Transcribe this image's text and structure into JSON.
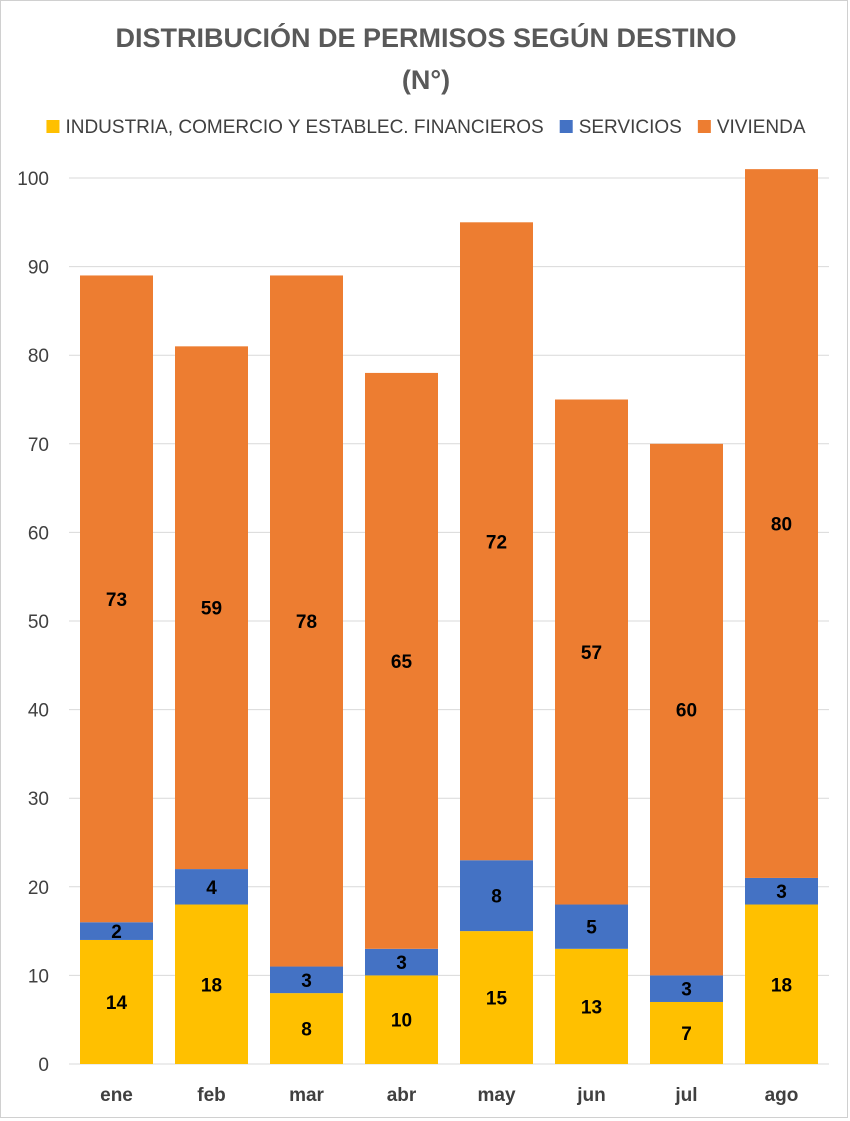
{
  "chart_data": {
    "type": "bar",
    "stacked": true,
    "title": "DISTRIBUCIÓN DE PERMISOS SEGÚN DESTINO",
    "subtitle": "(N°)",
    "xlabel": "",
    "ylabel": "",
    "ylim": [
      0,
      100
    ],
    "yticks": [
      0,
      10,
      20,
      30,
      40,
      50,
      60,
      70,
      80,
      90,
      100
    ],
    "grid": true,
    "legend_position": "top",
    "categories": [
      "ene",
      "feb",
      "mar",
      "abr",
      "may",
      "jun",
      "jul",
      "ago"
    ],
    "series": [
      {
        "name": "INDUSTRIA, COMERCIO Y ESTABLEC. FINANCIEROS",
        "color": "#FFC000",
        "values": [
          14,
          18,
          8,
          10,
          15,
          13,
          7,
          18
        ]
      },
      {
        "name": "SERVICIOS",
        "color": "#4472C4",
        "values": [
          2,
          4,
          3,
          3,
          8,
          5,
          3,
          3
        ]
      },
      {
        "name": "VIVIENDA",
        "color": "#ED7D31",
        "values": [
          73,
          59,
          78,
          65,
          72,
          57,
          60,
          80
        ]
      }
    ]
  }
}
